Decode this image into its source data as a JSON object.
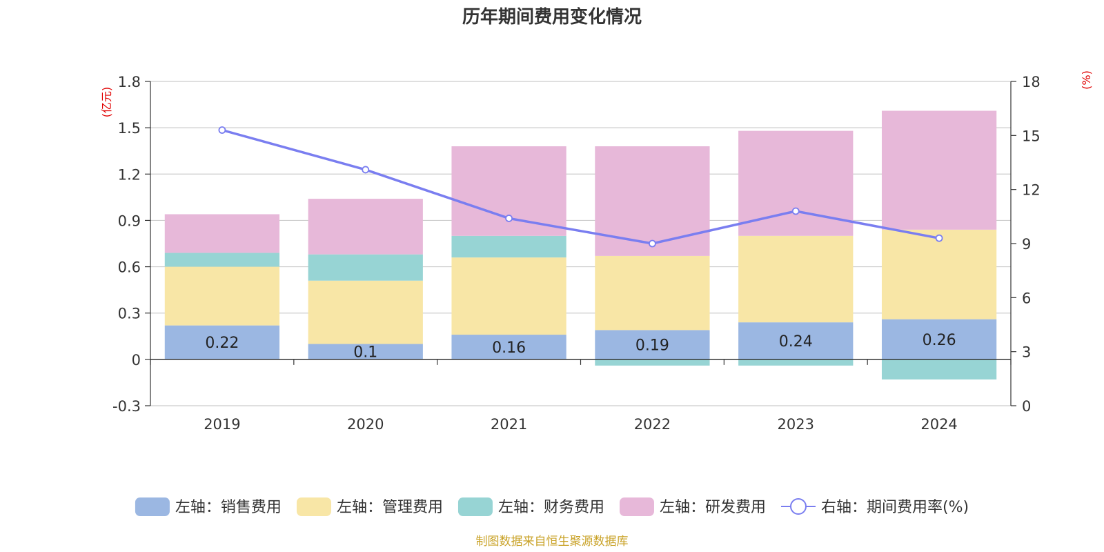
{
  "chart_data": {
    "type": "bar",
    "title": "历年期间费用变化情况",
    "categories": [
      "2019",
      "2020",
      "2021",
      "2022",
      "2023",
      "2024"
    ],
    "left_axis": {
      "unit_label": "(亿元)",
      "ylim": [
        -0.3,
        1.8
      ],
      "ticks": [
        "1.8",
        "1.5",
        "1.2",
        "0.9",
        "0.6",
        "0.3",
        "0",
        "-0.3"
      ],
      "tick_values": [
        1.8,
        1.5,
        1.2,
        0.9,
        0.6,
        0.3,
        0,
        -0.3
      ]
    },
    "right_axis": {
      "unit_label": "(%)",
      "ylim": [
        0,
        18
      ],
      "ticks": [
        "18",
        "15",
        "12",
        "9",
        "6",
        "3",
        "0"
      ],
      "tick_values": [
        18,
        15,
        12,
        9,
        6,
        3,
        0
      ]
    },
    "series": [
      {
        "name": "左轴：销售费用",
        "type": "bar",
        "axis": "left",
        "color": "#9bb7e2",
        "values": [
          0.22,
          0.1,
          0.16,
          0.19,
          0.24,
          0.26
        ],
        "labels": [
          "0.22",
          "0.1",
          "0.16",
          "0.19",
          "0.24",
          "0.26"
        ]
      },
      {
        "name": "左轴：管理费用",
        "type": "bar",
        "axis": "left",
        "color": "#f8e6a6",
        "values": [
          0.38,
          0.41,
          0.5,
          0.48,
          0.56,
          0.58
        ]
      },
      {
        "name": "左轴：财务费用",
        "type": "bar",
        "axis": "left",
        "color": "#97d4d4",
        "values": [
          0.09,
          0.17,
          0.14,
          -0.04,
          -0.04,
          -0.13
        ]
      },
      {
        "name": "左轴：研发费用",
        "type": "bar",
        "axis": "left",
        "color": "#e7b8d9",
        "values": [
          0.25,
          0.36,
          0.58,
          0.71,
          0.68,
          0.77
        ]
      },
      {
        "name": "右轴：期间费用率(%)",
        "type": "line",
        "axis": "right",
        "color": "#7a7ef0",
        "values": [
          15.3,
          13.1,
          10.4,
          9.0,
          10.8,
          9.3
        ]
      }
    ],
    "legend_position": "bottom-center",
    "grid": true
  },
  "footer": {
    "source": "制图数据来自恒生聚源数据库"
  },
  "colors": {
    "axis_unit": "#e00000",
    "source": "#c9a227",
    "grid": "#cccccc",
    "text": "#333333"
  }
}
